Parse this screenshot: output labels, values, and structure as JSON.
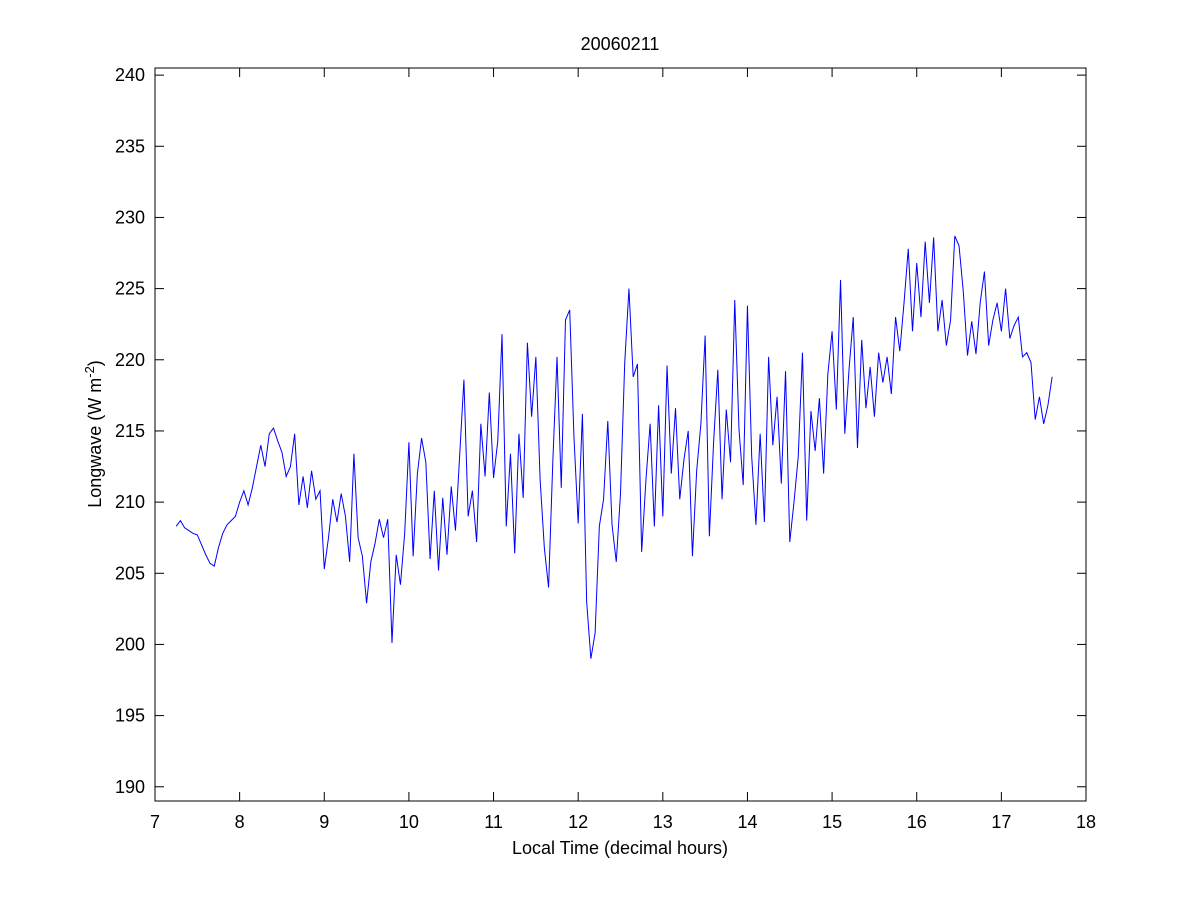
{
  "chart_data": {
    "type": "line",
    "title": "20060211",
    "xlabel": "Local Time (decimal hours)",
    "ylabel": [
      "Longwave (W m",
      "-2",
      ")"
    ],
    "xlim": [
      7,
      18
    ],
    "xticks": [
      7,
      8,
      9,
      10,
      11,
      12,
      13,
      14,
      15,
      16,
      17,
      18
    ],
    "ylim": [
      189,
      240.5
    ],
    "yticks": [
      190,
      195,
      200,
      205,
      210,
      215,
      220,
      225,
      230,
      235,
      240
    ],
    "grid": false,
    "series": [
      {
        "color": "#0000ff",
        "x": [
          7.25,
          7.3,
          7.35,
          7.4,
          7.45,
          7.5,
          7.55,
          7.6,
          7.65,
          7.7,
          7.75,
          7.8,
          7.85,
          7.9,
          7.95,
          8,
          8.05,
          8.1,
          8.15,
          8.2,
          8.25,
          8.3,
          8.35,
          8.4,
          8.45,
          8.5,
          8.55,
          8.6,
          8.65,
          8.7,
          8.75,
          8.8,
          8.85,
          8.9,
          8.95,
          9,
          9.05,
          9.1,
          9.15,
          9.2,
          9.25,
          9.3,
          9.35,
          9.4,
          9.45,
          9.5,
          9.55,
          9.6,
          9.65,
          9.7,
          9.75,
          9.8,
          9.85,
          9.9,
          9.95,
          10,
          10.05,
          10.1,
          10.15,
          10.2,
          10.25,
          10.3,
          10.35,
          10.4,
          10.45,
          10.5,
          10.55,
          10.6,
          10.65,
          10.7,
          10.75,
          10.8,
          10.85,
          10.9,
          10.95,
          11,
          11.05,
          11.1,
          11.15,
          11.2,
          11.25,
          11.3,
          11.35,
          11.4,
          11.45,
          11.5,
          11.55,
          11.6,
          11.65,
          11.7,
          11.75,
          11.8,
          11.85,
          11.9,
          11.95,
          12,
          12.05,
          12.1,
          12.15,
          12.2,
          12.25,
          12.3,
          12.35,
          12.4,
          12.45,
          12.5,
          12.55,
          12.6,
          12.65,
          12.7,
          12.75,
          12.8,
          12.85,
          12.9,
          12.95,
          13,
          13.05,
          13.1,
          13.15,
          13.2,
          13.25,
          13.3,
          13.35,
          13.4,
          13.45,
          13.5,
          13.55,
          13.6,
          13.65,
          13.7,
          13.75,
          13.8,
          13.85,
          13.9,
          13.95,
          14,
          14.05,
          14.1,
          14.15,
          14.2,
          14.25,
          14.3,
          14.35,
          14.4,
          14.45,
          14.5,
          14.55,
          14.6,
          14.65,
          14.7,
          14.75,
          14.8,
          14.85,
          14.9,
          14.95,
          15,
          15.05,
          15.1,
          15.15,
          15.2,
          15.25,
          15.3,
          15.35,
          15.4,
          15.45,
          15.5,
          15.55,
          15.6,
          15.65,
          15.7,
          15.75,
          15.8,
          15.85,
          15.9,
          15.95,
          16,
          16.05,
          16.1,
          16.15,
          16.2,
          16.25,
          16.3,
          16.35,
          16.4,
          16.45,
          16.5,
          16.55,
          16.6,
          16.65,
          16.7,
          16.75,
          16.8,
          16.85,
          16.9,
          16.95,
          17,
          17.05,
          17.1,
          17.15,
          17.2,
          17.25,
          17.3,
          17.35,
          17.4,
          17.45,
          17.5,
          17.55,
          17.6
        ],
        "values": [
          208.3,
          208.7,
          208.2,
          208.0,
          207.8,
          207.7,
          207.0,
          206.3,
          205.7,
          205.5,
          206.8,
          207.8,
          208.4,
          208.7,
          209.0,
          210.0,
          210.8,
          209.8,
          211.0,
          212.5,
          214.0,
          212.5,
          214.8,
          215.2,
          214.3,
          213.5,
          211.8,
          212.5,
          214.8,
          209.8,
          211.8,
          209.6,
          212.2,
          210.2,
          210.8,
          205.3,
          207.5,
          210.2,
          208.6,
          210.6,
          209.0,
          205.8,
          213.4,
          207.5,
          206.2,
          202.9,
          205.8,
          207.1,
          208.8,
          207.5,
          208.8,
          200.1,
          206.3,
          204.2,
          207.8,
          214.2,
          206.2,
          212.0,
          214.5,
          212.8,
          206.0,
          210.8,
          205.2,
          210.3,
          206.3,
          211.1,
          208.0,
          213.3,
          218.6,
          209.0,
          210.8,
          207.2,
          215.5,
          211.8,
          217.7,
          211.7,
          214.3,
          221.8,
          208.3,
          213.4,
          206.4,
          214.8,
          210.3,
          221.2,
          216.0,
          220.2,
          211.6,
          206.8,
          204.0,
          212.8,
          220.2,
          211.0,
          222.8,
          223.5,
          214.6,
          208.5,
          216.2,
          203.0,
          199.0,
          200.8,
          208.3,
          210.2,
          215.7,
          208.4,
          205.8,
          210.6,
          219.8,
          225.0,
          218.8,
          219.7,
          206.5,
          211.5,
          215.5,
          208.3,
          216.8,
          209.0,
          219.6,
          212.0,
          216.6,
          210.2,
          213.0,
          215.0,
          206.2,
          212.2,
          215.5,
          221.7,
          207.6,
          214.2,
          219.3,
          210.2,
          216.5,
          212.8,
          224.2,
          215.1,
          211.2,
          223.8,
          213.2,
          208.4,
          214.8,
          208.6,
          220.2,
          214.0,
          217.4,
          211.3,
          219.2,
          207.2,
          210.0,
          213.2,
          220.5,
          208.7,
          216.4,
          213.6,
          217.3,
          212.0,
          219.0,
          222.0,
          216.5,
          225.6,
          214.8,
          219.3,
          223.0,
          213.8,
          221.4,
          216.6,
          219.5,
          216.0,
          220.5,
          218.4,
          220.2,
          217.6,
          223.0,
          220.6,
          224.0,
          227.8,
          222.0,
          226.8,
          223.0,
          228.3,
          224.0,
          228.6,
          222.0,
          224.2,
          221.0,
          222.8,
          228.7,
          228.0,
          224.8,
          220.3,
          222.7,
          220.4,
          224.0,
          226.2,
          221.0,
          222.8,
          224.0,
          222.0,
          225.0,
          221.5,
          222.4,
          223.0,
          220.2,
          220.5,
          219.8,
          215.8,
          217.4,
          215.5,
          216.8,
          218.8
        ]
      }
    ]
  }
}
